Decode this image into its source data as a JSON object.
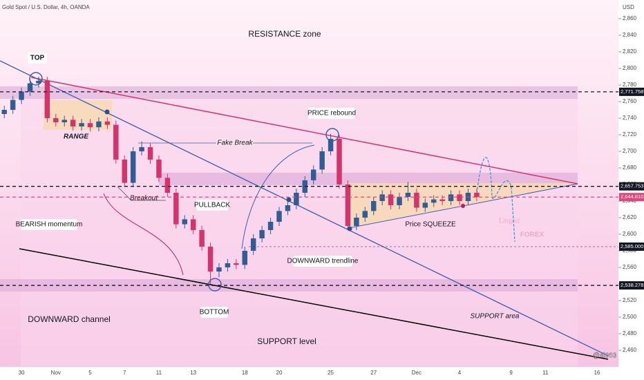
{
  "chart_data": {
    "type": "candlestick",
    "title": "Gold Spot / U.S. Dollar, 4h, OANDA",
    "y_axis_label": "USD",
    "categories": [
      null,
      null,
      "30",
      null,
      null,
      null,
      "Nov",
      null,
      null,
      null,
      "5",
      null,
      null,
      null,
      "7",
      null,
      null,
      null,
      "11",
      null,
      null,
      null,
      "13",
      null,
      null,
      null,
      null,
      null,
      "18",
      null,
      null,
      null,
      "20",
      null,
      null,
      null,
      null,
      null,
      "25",
      null,
      null,
      null,
      null,
      "27",
      null,
      null,
      null,
      null,
      "Dec",
      null,
      null,
      null,
      null,
      "4",
      null,
      null,
      null,
      null,
      null,
      "9",
      null,
      null,
      null,
      "11",
      null,
      null,
      null,
      null,
      null,
      "16",
      null,
      null
    ],
    "open": [
      2745,
      2750,
      2762,
      2772,
      2782,
      2785,
      2740,
      2735,
      2738,
      2730,
      2734,
      2729,
      2736,
      2732,
      2690,
      2662,
      2700,
      2705,
      2690,
      2668,
      2650,
      2612,
      2618,
      2605,
      2585,
      2555,
      2560,
      2565,
      2563,
      2580,
      2595,
      2605,
      2615,
      2628,
      2635,
      2650,
      2665,
      2678,
      2700,
      2715,
      2660,
      2610,
      2620,
      2628,
      2640,
      2648,
      2635,
      2645,
      2650,
      2632,
      2638,
      2642,
      2640,
      2648,
      2640,
      2650,
      null,
      null,
      null,
      null,
      null,
      null,
      null,
      null,
      null,
      null,
      null,
      null,
      null,
      null,
      null,
      null
    ],
    "high": [
      2755,
      2767,
      2777,
      2787,
      2790,
      2790,
      2745,
      2743,
      2743,
      2739,
      2739,
      2741,
      2741,
      2737,
      2695,
      2705,
      2712,
      2710,
      2695,
      2673,
      2655,
      2623,
      2623,
      2610,
      2590,
      2565,
      2570,
      2570,
      2585,
      2600,
      2610,
      2620,
      2633,
      2640,
      2655,
      2670,
      2683,
      2705,
      2721,
      2720,
      2665,
      2625,
      2633,
      2645,
      2653,
      2653,
      2650,
      2663,
      2655,
      2643,
      2647,
      2647,
      2653,
      2653,
      2655,
      2655,
      null,
      null,
      null,
      null,
      null,
      null,
      null,
      null,
      null,
      null,
      null,
      null,
      null,
      null,
      null,
      null
    ],
    "low": [
      2740,
      2745,
      2757,
      2767,
      2777,
      2735,
      2730,
      2730,
      2725,
      2725,
      2724,
      2724,
      2727,
      2685,
      2657,
      2657,
      2695,
      2685,
      2663,
      2645,
      2607,
      2607,
      2600,
      2580,
      2540,
      2548,
      2555,
      2558,
      2558,
      2575,
      2590,
      2600,
      2610,
      2623,
      2630,
      2645,
      2660,
      2673,
      2695,
      2655,
      2605,
      2605,
      2615,
      2623,
      2635,
      2630,
      2630,
      2640,
      2627,
      2627,
      2633,
      2635,
      2635,
      2635,
      2635,
      2640,
      null,
      null,
      null,
      null,
      null,
      null,
      null,
      null,
      null,
      null,
      null,
      null,
      null,
      null,
      null,
      null
    ],
    "close": [
      2750,
      2762,
      2772,
      2782,
      2785,
      2740,
      2735,
      2738,
      2730,
      2734,
      2729,
      2736,
      2732,
      2690,
      2662,
      2700,
      2705,
      2690,
      2668,
      2650,
      2612,
      2618,
      2605,
      2585,
      2555,
      2560,
      2565,
      2563,
      2580,
      2595,
      2605,
      2615,
      2628,
      2635,
      2650,
      2665,
      2678,
      2700,
      2715,
      2660,
      2610,
      2620,
      2628,
      2640,
      2648,
      2635,
      2645,
      2650,
      2632,
      2638,
      2642,
      2640,
      2648,
      2640,
      2650,
      2645,
      null,
      null,
      null,
      null,
      null,
      null,
      null,
      null,
      null,
      null,
      null,
      null,
      null,
      null,
      null,
      null
    ],
    "up_color": "#2f5e96",
    "down_color": "#d6336c",
    "ylim": [
      2440,
      2880
    ],
    "yticks": [
      {
        "value": 2460,
        "label": "2,460"
      },
      {
        "value": 2480,
        "label": "2,480"
      },
      {
        "value": 2500,
        "label": "2,500"
      },
      {
        "value": 2520,
        "label": "2,520"
      },
      {
        "value": 2540,
        "label": "2,540"
      },
      {
        "value": 2560,
        "label": "2,560"
      },
      {
        "value": 2580,
        "label": "2,580"
      },
      {
        "value": 2600,
        "label": "2,600"
      },
      {
        "value": 2620,
        "label": "2,620"
      },
      {
        "value": 2640,
        "label": "2,640"
      },
      {
        "value": 2660,
        "label": "2,660"
      },
      {
        "value": 2680,
        "label": "2,680"
      },
      {
        "value": 2700,
        "label": "2,700"
      },
      {
        "value": 2720,
        "label": "2,720"
      },
      {
        "value": 2740,
        "label": "2,740"
      },
      {
        "value": 2760,
        "label": "2,760"
      },
      {
        "value": 2780,
        "label": "2,780"
      },
      {
        "value": 2800,
        "label": "2,800"
      },
      {
        "value": 2820,
        "label": "2,820"
      },
      {
        "value": 2840,
        "label": "2,840"
      },
      {
        "value": 2860,
        "label": "2,860"
      }
    ],
    "price_levels": [
      {
        "value": 2771.758,
        "label": "2,771.758",
        "color": "#131722"
      },
      {
        "value": 2657.753,
        "label": "2,657.753",
        "color": "#131722"
      },
      {
        "value": 2644.81,
        "label": "2,644.810",
        "color": "#e0457b"
      },
      {
        "value": 2585,
        "label": "2,585.000",
        "color": "#131722"
      },
      {
        "value": 2538.278,
        "label": "2,538.278",
        "color": "#131722"
      }
    ],
    "annotations": {
      "resistance_zone": "RESISTANCE zone",
      "top": "TOP",
      "range": "RANGE",
      "price_rebound": "PRICE rebound",
      "fake_break": "Fake Break",
      "breakout": "Breakout",
      "pullback": "PULLBACK",
      "bearish_momentum": "BEARISH momentum",
      "downward_trendline": "DOWNWARD trendline",
      "price_squeeze": "Price SQUEEZE",
      "bottom": "BOTTOM",
      "downward_channel": "DOWNWARD channel",
      "support_level": "SUPPORT level",
      "support_area": "SUPPORT area"
    },
    "watermark": {
      "brand": "Lingrid",
      "sub": "FOREX",
      "handle": "@ai963"
    }
  }
}
